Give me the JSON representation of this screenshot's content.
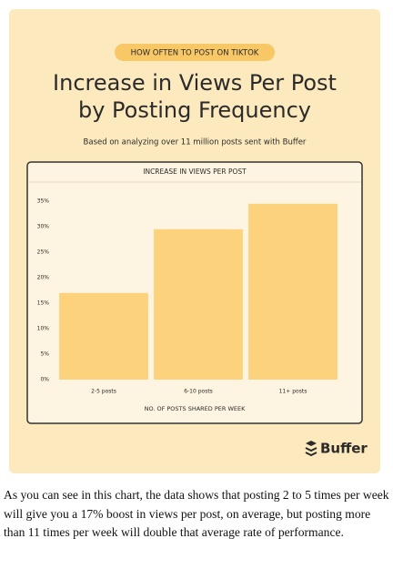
{
  "chart_data": {
    "type": "bar",
    "badge": "HOW OFTEN TO POST ON TIKTOK",
    "title_lines": [
      "Increase in Views Per Post",
      "by Posting Frequency"
    ],
    "subtitle": "Based on analyzing over 11 million posts sent with Buffer",
    "chart_title": "INCREASE IN VIEWS PER POST",
    "x_label": "NO. OF POSTS SHARED PER WEEK",
    "categories": [
      "2-5 posts",
      "6-10 posts",
      "11+ posts"
    ],
    "values": [
      17,
      29.5,
      34.5
    ],
    "color": "#fcd27c",
    "ylim": [
      0,
      35
    ],
    "yticks": [
      {
        "value": 0,
        "label": "0%"
      },
      {
        "value": 5,
        "label": "5%"
      },
      {
        "value": 10,
        "label": "10%"
      },
      {
        "value": 15,
        "label": "15%"
      },
      {
        "value": 20,
        "label": "20%"
      },
      {
        "value": 25,
        "label": "25%"
      },
      {
        "value": 30,
        "label": "30%"
      },
      {
        "value": 35,
        "label": "35%"
      }
    ],
    "grid": false,
    "brand": "Buffer"
  },
  "paragraph": "As you can see in this chart, the data shows that posting 2 to 5 times per week will give you a 17% boost in views per post, on average, but posting more than 11 times per week will double that average rate of performance."
}
